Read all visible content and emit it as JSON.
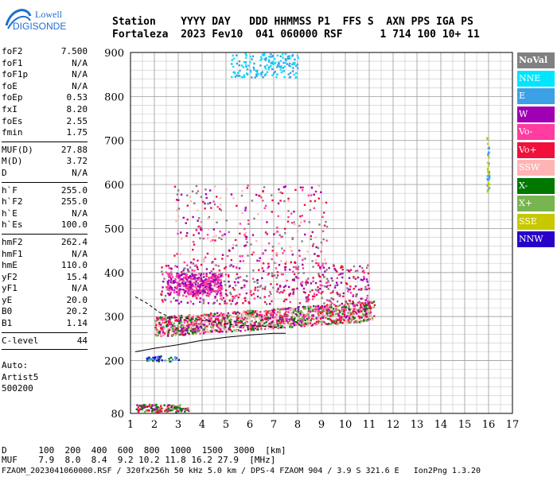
{
  "logo": {
    "line1": "Lowell",
    "line2": "DIGISONDE"
  },
  "header": {
    "line1": "Station    YYYY DAY   DDD HHMMSS P1  FFS S  AXN PPS IGA PS",
    "line2": "Fortaleza  2023 Fev10  041 060000 RSF      1 714 100 10+ 11"
  },
  "params": {
    "group1": [
      {
        "name": "foF2",
        "value": "7.500"
      },
      {
        "name": "foF1",
        "value": "N/A"
      },
      {
        "name": "foF1p",
        "value": "N/A"
      },
      {
        "name": "foE",
        "value": "N/A"
      },
      {
        "name": "foEp",
        "value": "0.53"
      },
      {
        "name": "fxI",
        "value": "8.20"
      },
      {
        "name": "foEs",
        "value": "2.55"
      },
      {
        "name": "fmin",
        "value": "1.75"
      }
    ],
    "group2": [
      {
        "name": "MUF(D)",
        "value": "27.88"
      },
      {
        "name": "M(D)",
        "value": "3.72"
      },
      {
        "name": "D",
        "value": "N/A"
      }
    ],
    "group3": [
      {
        "name": "h`F",
        "value": "255.0"
      },
      {
        "name": "h`F2",
        "value": "255.0"
      },
      {
        "name": "h`E",
        "value": "N/A"
      },
      {
        "name": "h`Es",
        "value": "100.0"
      }
    ],
    "group4": [
      {
        "name": "hmF2",
        "value": "262.4"
      },
      {
        "name": "hmF1",
        "value": "N/A"
      },
      {
        "name": "hmE",
        "value": "110.0"
      },
      {
        "name": "yF2",
        "value": "15.4"
      },
      {
        "name": "yF1",
        "value": "N/A"
      },
      {
        "name": "yE",
        "value": "20.0"
      },
      {
        "name": "B0",
        "value": "20.2"
      },
      {
        "name": "B1",
        "value": "1.14"
      }
    ],
    "group5": [
      {
        "name": "C-level",
        "value": "44"
      }
    ],
    "auto": [
      "Auto:",
      "Artist5",
      "500200"
    ]
  },
  "legend": [
    {
      "label": "NoVal",
      "color": "#808080"
    },
    {
      "label": "NNE",
      "color": "#00e5ff"
    },
    {
      "label": "E",
      "color": "#3ca0e6"
    },
    {
      "label": "W",
      "color": "#a000b4"
    },
    {
      "label": "Vo-",
      "color": "#ff3ca0"
    },
    {
      "label": "Vo+",
      "color": "#f0103c"
    },
    {
      "label": "SSW",
      "color": "#ffb4b4"
    },
    {
      "label": "X-",
      "color": "#007800"
    },
    {
      "label": "X+",
      "color": "#78b450"
    },
    {
      "label": "SSE",
      "color": "#c8c800"
    },
    {
      "label": "NNW",
      "color": "#2800c8"
    }
  ],
  "bottom": {
    "line1": "D      100  200  400  600  800  1000  1500  3000  [km]",
    "line2": "MUF    7.9  8.0  8.4  9.2 10.2 11.8 16.2 27.9  [MHz]"
  },
  "footer": "FZAOM_2023041060000.RSF / 320fx256h 50 kHz 5.0 km / DPS-4 FZAOM 904 / 3.9 S 321.6 E   Ion2Png 1.3.20",
  "chart_data": {
    "type": "scatter",
    "xlim": [
      1,
      17
    ],
    "ylim": [
      80,
      900
    ],
    "xticks": [
      1,
      2,
      3,
      4,
      5,
      6,
      7,
      8,
      9,
      10,
      11,
      12,
      13,
      14,
      15,
      16,
      17
    ],
    "yticks": [
      80,
      200,
      300,
      400,
      500,
      600,
      700,
      800,
      900
    ],
    "grid": true,
    "regions": [
      {
        "name": "F-trace",
        "x": [
          2.0,
          11.2
        ],
        "y": [
          255,
          330
        ],
        "colors": [
          "#f0103c",
          "#ff3ca0",
          "#a000b4",
          "#007800",
          "#78b450",
          "#ffb4b4"
        ],
        "density": 1400
      },
      {
        "name": "F-upper",
        "x": [
          2.2,
          11.0
        ],
        "y": [
          330,
          420
        ],
        "colors": [
          "#a000b4",
          "#f0103c",
          "#ff3ca0",
          "#808080"
        ],
        "density": 500
      },
      {
        "name": "spread-band",
        "x": [
          2.5,
          4.8
        ],
        "y": [
          350,
          400
        ],
        "colors": [
          "#a000b4",
          "#ff3ca0"
        ],
        "density": 350
      },
      {
        "name": "mid-scatter",
        "x": [
          2.8,
          9.2
        ],
        "y": [
          420,
          600
        ],
        "colors": [
          "#a000b4",
          "#ff3ca0",
          "#f0103c",
          "#808080",
          "#ffb4b4"
        ],
        "density": 300
      },
      {
        "name": "E-echo",
        "x": [
          5.2,
          8.0
        ],
        "y": [
          845,
          900
        ],
        "colors": [
          "#3ca0e6",
          "#00e5ff"
        ],
        "density": 160
      },
      {
        "name": "Es",
        "x": [
          1.2,
          3.4
        ],
        "y": [
          85,
          102
        ],
        "colors": [
          "#a000b4",
          "#007800",
          "#78b450",
          "#f0103c"
        ],
        "density": 140
      },
      {
        "name": "low-echo",
        "x": [
          1.6,
          3.0
        ],
        "y": [
          200,
          212
        ],
        "colors": [
          "#3ca0e6",
          "#2800c8",
          "#007800"
        ],
        "density": 40
      },
      {
        "name": "sse-column",
        "x": [
          15.9,
          16.0
        ],
        "y": [
          580,
          720
        ],
        "colors": [
          "#c8c800",
          "#3ca0e6"
        ],
        "density": 40
      }
    ],
    "profile_solid": {
      "x": [
        1.2,
        2.0,
        3.0,
        4.0,
        5.0,
        6.0,
        7.0,
        7.5
      ],
      "y": [
        220,
        228,
        236,
        246,
        253,
        258,
        262,
        262
      ]
    },
    "profile_dashed": {
      "x": [
        1.2,
        1.7,
        2.2,
        2.6,
        3.0,
        3.6,
        4.2,
        4.8,
        5.2,
        5.6,
        6.0,
        6.6,
        7.0,
        7.5
      ],
      "y": [
        345,
        330,
        310,
        300,
        298,
        295,
        290,
        285,
        282,
        280,
        279,
        278,
        276,
        274
      ]
    }
  }
}
